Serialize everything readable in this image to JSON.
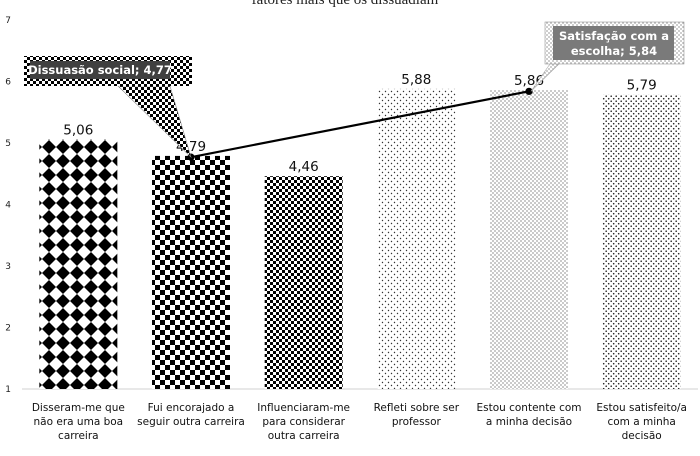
{
  "chart_data": {
    "type": "bar",
    "title": "fatores mais que os dissuadiam",
    "categories": [
      [
        "Disseram-me que",
        "não era uma boa",
        "carreira"
      ],
      [
        "Fui encorajado a",
        "seguir outra carreira"
      ],
      [
        "Influenciaram-me",
        "para considerar",
        "outra carreira"
      ],
      [
        "Refleti sobre ser",
        "professor"
      ],
      [
        "Estou contente com",
        "a minha decisão"
      ],
      [
        "Estou satisfeito/a",
        "com a minha",
        "decisão"
      ]
    ],
    "values": [
      5.06,
      4.79,
      4.46,
      5.88,
      5.86,
      5.79
    ],
    "value_labels": [
      "5,06",
      "4,79",
      "4,46",
      "5,88",
      "5,86",
      "5,79"
    ],
    "patterns": [
      "diamond",
      "checker",
      "checker-fine",
      "dots-sparse",
      "dots-fine",
      "dots-medium"
    ],
    "ylim": [
      1,
      7
    ],
    "yticks": [
      1,
      2,
      3,
      4,
      5,
      6,
      7
    ],
    "grid": false,
    "line_series": {
      "points": [
        {
          "category_index": 1,
          "value": 4.77
        },
        {
          "category_index": 4,
          "value": 5.84
        }
      ],
      "callouts": [
        {
          "lines": [
            "Dissuasão social; 4,77"
          ],
          "point": 0
        },
        {
          "lines": [
            "Satisfação com a",
            "escolha; 5,84"
          ],
          "point": 1
        }
      ]
    }
  }
}
